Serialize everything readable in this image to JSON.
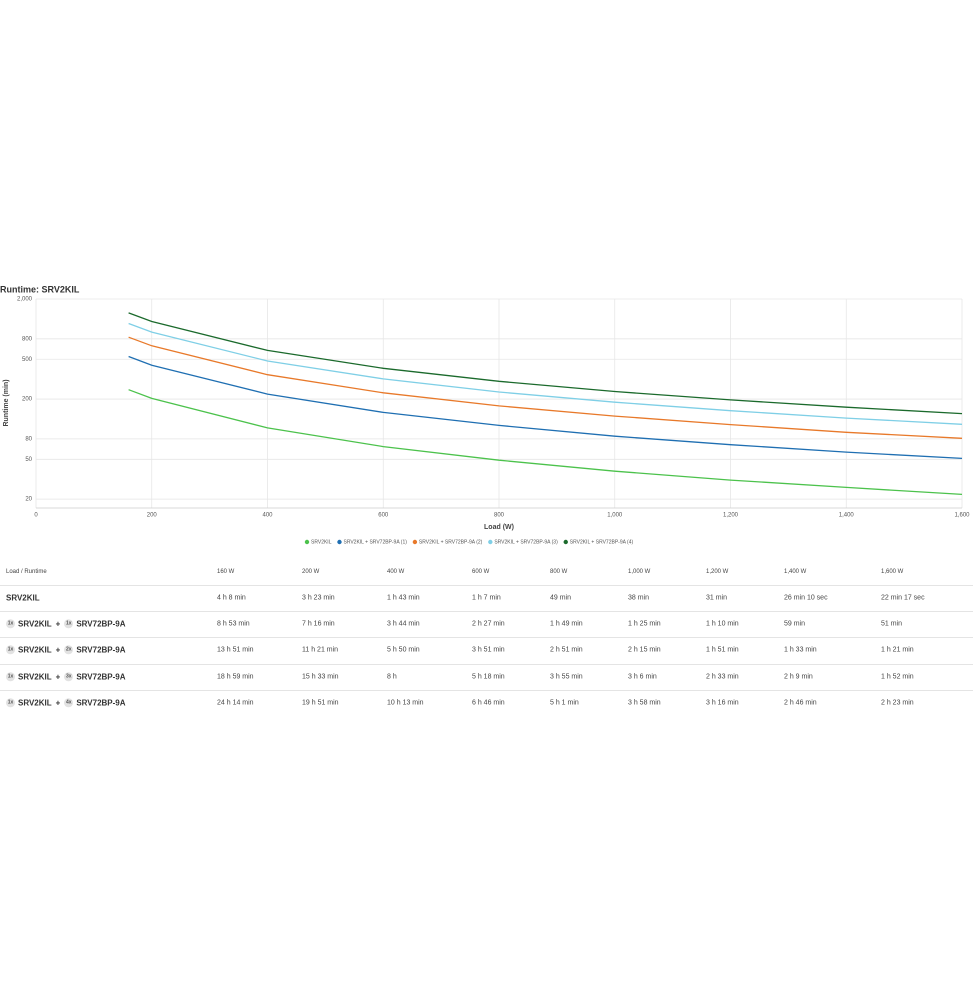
{
  "chart_data": {
    "type": "line",
    "title": "Runtime: SRV2KIL",
    "x_label": "Load (W)",
    "y_label": "Runtime (min)",
    "x": [
      160,
      200,
      400,
      600,
      800,
      1000,
      1200,
      1400,
      1600
    ],
    "series": [
      {
        "name": "SRV2KIL",
        "color": "#4cc24c",
        "values": [
          248,
          203,
          103,
          67,
          49,
          38,
          31,
          26.17,
          22.28
        ]
      },
      {
        "name": "SRV2KIL + SRV72BP-9A (1)",
        "color": "#1f6fb2",
        "values": [
          533,
          436,
          224,
          147,
          109,
          85,
          70,
          59,
          51
        ]
      },
      {
        "name": "SRV2KIL + SRV72BP-9A (2)",
        "color": "#e8792a",
        "values": [
          831,
          681,
          350,
          231,
          171,
          135,
          111,
          93,
          81
        ]
      },
      {
        "name": "SRV2KIL + SRV72BP-9A (3)",
        "color": "#7fcfe6",
        "values": [
          1139,
          933,
          480,
          318,
          235,
          186,
          153,
          129,
          112
        ]
      },
      {
        "name": "SRV2KIL + SRV72BP-9A (4)",
        "color": "#1b6a2c",
        "values": [
          1454,
          1191,
          613,
          406,
          301,
          238,
          196,
          166,
          143
        ]
      }
    ],
    "xlim": [
      0,
      1600
    ],
    "xticks": [
      0,
      200,
      400,
      600,
      800,
      {
        "value": 1000,
        "label": "1,000"
      },
      {
        "value": 1200,
        "label": "1,200"
      },
      {
        "value": 1400,
        "label": "1,400"
      },
      {
        "value": 1600,
        "label": "1,600"
      }
    ],
    "ylim": [
      16.3,
      2000
    ],
    "log_y": true,
    "yticks": [
      20,
      50,
      80,
      200,
      500,
      800,
      {
        "value": 2000,
        "label": "2,000"
      }
    ],
    "grid": true,
    "legend": "bottom"
  },
  "table": {
    "header": [
      "Load / Runtime",
      "160 W",
      "200 W",
      "400 W",
      "600 W",
      "800 W",
      "1,000 W",
      "1,200 W",
      "1,400 W",
      "1,600 W"
    ],
    "rows": [
      {
        "label": {
          "ups": "SRV2KIL"
        },
        "cells": [
          "4 h 8 min",
          "3 h 23 min",
          "1 h 43 min",
          "1 h 7 min",
          "49 min",
          "38 min",
          "31 min",
          "26 min 10 sec",
          "22 min 17 sec"
        ]
      },
      {
        "label": {
          "ups_qty": "1x",
          "ups": "SRV2KIL",
          "plus": "+",
          "battery_qty": "1x",
          "battery": "SRV72BP-9A"
        },
        "cells": [
          "8 h 53 min",
          "7 h 16 min",
          "3 h 44 min",
          "2 h 27 min",
          "1 h 49 min",
          "1 h 25 min",
          "1 h 10 min",
          "59 min",
          "51 min"
        ]
      },
      {
        "label": {
          "ups_qty": "1x",
          "ups": "SRV2KIL",
          "plus": "+",
          "battery_qty": "2x",
          "battery": "SRV72BP-9A"
        },
        "cells": [
          "13 h 51 min",
          "11 h 21 min",
          "5 h 50 min",
          "3 h 51 min",
          "2 h 51 min",
          "2 h 15 min",
          "1 h 51 min",
          "1 h 33 min",
          "1 h 21 min"
        ]
      },
      {
        "label": {
          "ups_qty": "1x",
          "ups": "SRV2KIL",
          "plus": "+",
          "battery_qty": "3x",
          "battery": "SRV72BP-9A"
        },
        "cells": [
          "18 h 59 min",
          "15 h 33 min",
          "8 h",
          "5 h 18 min",
          "3 h 55 min",
          "3 h 6 min",
          "2 h 33 min",
          "2 h 9 min",
          "1 h 52 min"
        ]
      },
      {
        "label": {
          "ups_qty": "1x",
          "ups": "SRV2KIL",
          "plus": "+",
          "battery_qty": "4x",
          "battery": "SRV72BP-9A"
        },
        "cells": [
          "24 h 14 min",
          "19 h 51 min",
          "10 h 13 min",
          "6 h 46 min",
          "5 h 1 min",
          "3 h 58 min",
          "3 h 16 min",
          "2 h 46 min",
          "2 h 23 min"
        ]
      }
    ]
  }
}
